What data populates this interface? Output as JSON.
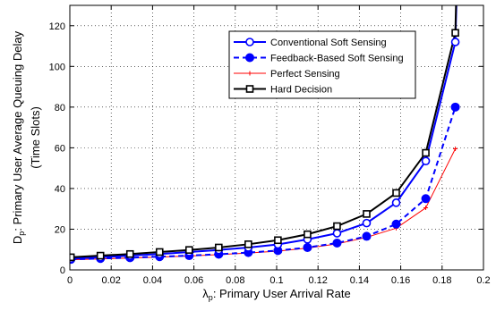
{
  "chart_data": {
    "type": "line",
    "xlabel": {
      "symbol": "λ",
      "sub": "p",
      "text": ": Primary User Arrival Rate"
    },
    "ylabel": {
      "line1_symbol": "D",
      "line1_sub": "p",
      "line1_text": ": Primary User Average Queuing Delay",
      "line2": "(Time Slots)"
    },
    "xlim": [
      0,
      0.2
    ],
    "ylim": [
      0,
      130
    ],
    "xticks": [
      0,
      0.02,
      0.04,
      0.06,
      0.08,
      0.1,
      0.12,
      0.14,
      0.16,
      0.18,
      0.2
    ],
    "xtick_labels": [
      "0",
      "0.02",
      "0.04",
      "0.06",
      "0.08",
      "0.1",
      "0.12",
      "0.14",
      "0.16",
      "0.18",
      "0.2"
    ],
    "yticks": [
      0,
      20,
      40,
      60,
      80,
      100,
      120
    ],
    "ytick_labels": [
      "0",
      "20",
      "40",
      "60",
      "80",
      "100",
      "120"
    ],
    "grid": true,
    "legend_position": "top-right",
    "series": [
      {
        "name": "Conventional Soft Sensing",
        "color": "#0000ff",
        "dash": "solid",
        "marker": "circle-open",
        "x": [
          0.0005,
          0.0148,
          0.0291,
          0.0434,
          0.0577,
          0.072,
          0.0863,
          0.1006,
          0.1149,
          0.1292,
          0.1435,
          0.1578,
          0.1721,
          0.1864
        ],
        "y": [
          5.5,
          6.2,
          7,
          7.8,
          8.8,
          9.8,
          11,
          12.5,
          15,
          18,
          23,
          33,
          53.5,
          112
        ]
      },
      {
        "name": "Feedback-Based Soft Sensing",
        "color": "#0000ff",
        "dash": "dashed",
        "marker": "circle-filled",
        "x": [
          0.0005,
          0.0148,
          0.0291,
          0.0434,
          0.0577,
          0.072,
          0.0863,
          0.1006,
          0.1149,
          0.1292,
          0.1435,
          0.1578,
          0.1721,
          0.1864
        ],
        "y": [
          5.2,
          5.6,
          6,
          6.5,
          7,
          7.7,
          8.5,
          9.5,
          11,
          13.2,
          16.5,
          22.5,
          35,
          80
        ]
      },
      {
        "name": "Perfect Sensing",
        "color": "#ff0000",
        "dash": "solid",
        "marker": "plus",
        "x": [
          0.0005,
          0.0148,
          0.0291,
          0.0434,
          0.0577,
          0.072,
          0.0863,
          0.1006,
          0.1149,
          0.1292,
          0.1435,
          0.1578,
          0.1721,
          0.1864
        ],
        "y": [
          5,
          5.4,
          5.8,
          6.3,
          6.8,
          7.5,
          8.3,
          9.2,
          10.7,
          12.8,
          16,
          20.5,
          30.5,
          59.5
        ]
      },
      {
        "name": "Hard Decision",
        "color": "#000000",
        "dash": "solid",
        "marker": "square-open",
        "x": [
          0.0005,
          0.0148,
          0.0291,
          0.0434,
          0.0577,
          0.072,
          0.0863,
          0.1006,
          0.1149,
          0.1292,
          0.1435,
          0.1578,
          0.1721,
          0.1864
        ],
        "y": [
          6.2,
          7,
          7.8,
          8.8,
          9.8,
          11,
          12.6,
          14.6,
          17.5,
          21.5,
          27.5,
          37.8,
          57.5,
          116.5
        ]
      }
    ],
    "extra_segments": [
      {
        "series": "Conventional Soft Sensing",
        "x": [
          0.1864,
          0.187
        ],
        "y": [
          112,
          133
        ]
      },
      {
        "series": "Hard Decision",
        "x": [
          0.1864,
          0.1868
        ],
        "y": [
          116.5,
          133
        ]
      }
    ]
  }
}
